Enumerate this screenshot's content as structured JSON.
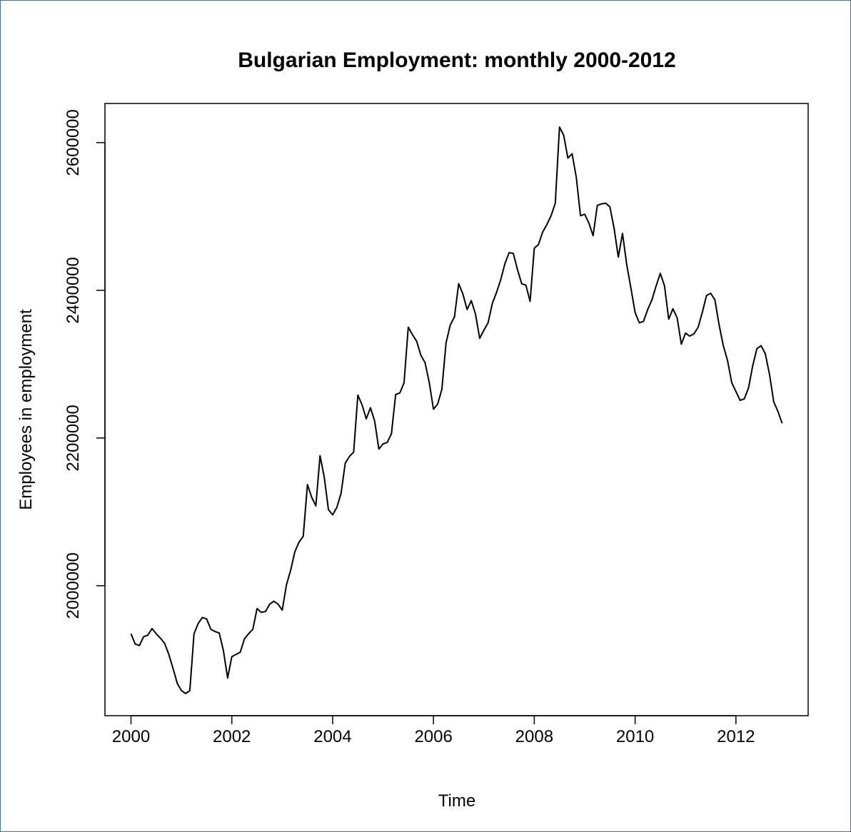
{
  "chart_data": {
    "type": "line",
    "title": "Bulgarian Employment: monthly 2000-2012",
    "x_label": "Time",
    "y_label": "Employees in employment",
    "x": [
      2000,
      2000.0833,
      2000.1667,
      2000.25,
      2000.3333,
      2000.4167,
      2000.5,
      2000.5833,
      2000.6667,
      2000.75,
      2000.8333,
      2000.9167,
      2001,
      2001.0833,
      2001.1667,
      2001.25,
      2001.3333,
      2001.4167,
      2001.5,
      2001.5833,
      2001.6667,
      2001.75,
      2001.8333,
      2001.9167,
      2002,
      2002.0833,
      2002.1667,
      2002.25,
      2002.3333,
      2002.4167,
      2002.5,
      2002.5833,
      2002.6667,
      2002.75,
      2002.8333,
      2002.9167,
      2003,
      2003.0833,
      2003.1667,
      2003.25,
      2003.3333,
      2003.4167,
      2003.5,
      2003.5833,
      2003.6667,
      2003.75,
      2003.8333,
      2003.9167,
      2004,
      2004.0833,
      2004.1667,
      2004.25,
      2004.3333,
      2004.4167,
      2004.5,
      2004.5833,
      2004.6667,
      2004.75,
      2004.8333,
      2004.9167,
      2005,
      2005.0833,
      2005.1667,
      2005.25,
      2005.3333,
      2005.4167,
      2005.5,
      2005.5833,
      2005.6667,
      2005.75,
      2005.8333,
      2005.9167,
      2006,
      2006.0833,
      2006.1667,
      2006.25,
      2006.3333,
      2006.4167,
      2006.5,
      2006.5833,
      2006.6667,
      2006.75,
      2006.8333,
      2006.9167,
      2007,
      2007.0833,
      2007.1667,
      2007.25,
      2007.3333,
      2007.4167,
      2007.5,
      2007.5833,
      2007.6667,
      2007.75,
      2007.8333,
      2007.9167,
      2008,
      2008.0833,
      2008.1667,
      2008.25,
      2008.3333,
      2008.4167,
      2008.5,
      2008.5833,
      2008.6667,
      2008.75,
      2008.8333,
      2008.9167,
      2009,
      2009.0833,
      2009.1667,
      2009.25,
      2009.3333,
      2009.4167,
      2009.5,
      2009.5833,
      2009.6667,
      2009.75,
      2009.8333,
      2009.9167,
      2010,
      2010.0833,
      2010.1667,
      2010.25,
      2010.3333,
      2010.4167,
      2010.5,
      2010.5833,
      2010.6667,
      2010.75,
      2010.8333,
      2010.9167,
      2011,
      2011.0833,
      2011.1667,
      2011.25,
      2011.3333,
      2011.4167,
      2011.5,
      2011.5833,
      2011.6667,
      2011.75,
      2011.8333,
      2011.9167,
      2012,
      2012.0833,
      2012.1667,
      2012.25,
      2012.3333,
      2012.4167,
      2012.5,
      2012.5833,
      2012.6667,
      2012.75,
      2012.8333,
      2012.9167
    ],
    "values": [
      1935000,
      1921000,
      1919000,
      1931000,
      1933000,
      1942000,
      1935000,
      1929000,
      1922000,
      1907000,
      1888000,
      1868000,
      1858000,
      1854000,
      1858000,
      1935000,
      1949000,
      1957000,
      1955000,
      1941000,
      1938000,
      1936000,
      1912000,
      1875000,
      1904000,
      1907000,
      1910000,
      1928000,
      1935000,
      1941000,
      1969000,
      1964000,
      1965000,
      1975000,
      1979000,
      1975000,
      1967000,
      2001000,
      2021000,
      2046000,
      2059000,
      2067000,
      2137000,
      2120000,
      2108000,
      2176000,
      2147000,
      2103000,
      2096000,
      2106000,
      2125000,
      2166000,
      2175000,
      2181000,
      2258000,
      2245000,
      2226000,
      2241000,
      2223000,
      2185000,
      2192000,
      2194000,
      2206000,
      2259000,
      2261000,
      2275000,
      2350000,
      2340000,
      2331000,
      2312000,
      2302000,
      2275000,
      2239000,
      2246000,
      2266000,
      2329000,
      2353000,
      2364000,
      2409000,
      2395000,
      2374000,
      2386000,
      2368000,
      2335000,
      2346000,
      2356000,
      2382000,
      2397000,
      2414000,
      2436000,
      2451000,
      2450000,
      2428000,
      2409000,
      2407000,
      2385000,
      2457000,
      2462000,
      2479000,
      2489000,
      2501000,
      2518000,
      2621000,
      2610000,
      2579000,
      2585000,
      2553000,
      2501000,
      2503000,
      2491000,
      2474000,
      2515000,
      2517000,
      2518000,
      2513000,
      2484000,
      2445000,
      2477000,
      2435000,
      2403000,
      2370000,
      2356000,
      2358000,
      2374000,
      2387000,
      2406000,
      2423000,
      2406000,
      2361000,
      2375000,
      2363000,
      2327000,
      2342000,
      2338000,
      2341000,
      2350000,
      2370000,
      2393000,
      2396000,
      2387000,
      2353000,
      2325000,
      2305000,
      2275000,
      2263000,
      2251000,
      2253000,
      2268000,
      2298000,
      2321000,
      2325000,
      2314000,
      2286000,
      2249000,
      2236000,
      2220000
    ],
    "color": "#000000",
    "xlim": [
      1999.483,
      2013.433
    ],
    "ylim": [
      1824000,
      2653000
    ],
    "xticks": [
      2000,
      2002,
      2004,
      2006,
      2008,
      2010,
      2012
    ],
    "yticks": [
      2000000,
      2200000,
      2400000,
      2600000
    ],
    "grid": false
  }
}
